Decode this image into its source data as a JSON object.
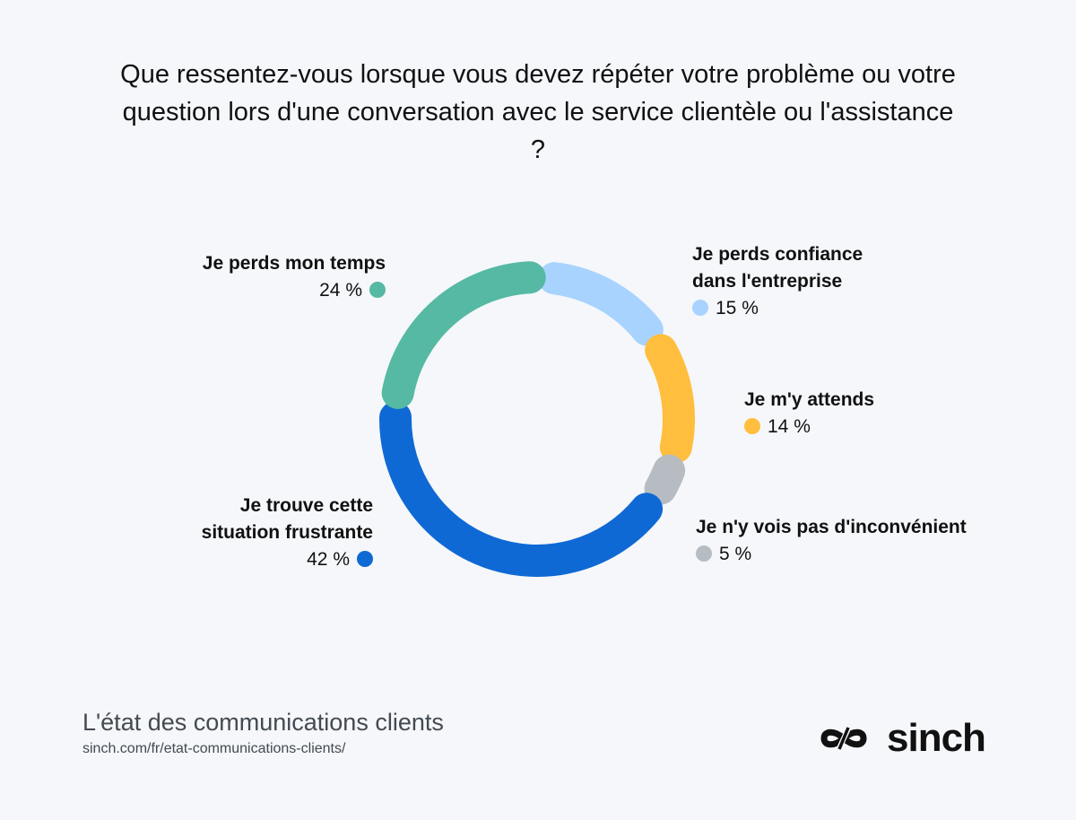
{
  "chart_data": {
    "type": "pie",
    "variant": "donut",
    "title": "Que ressentez-vous lorsque vous devez répéter votre problème ou votre question lors d'une conversation avec le service clientèle ou l'assistance ?",
    "slices": [
      {
        "label": "Je perds confiance dans l'entreprise",
        "value": 15,
        "display": "15 %",
        "color": "#a8d3ff"
      },
      {
        "label": "Je m'y attends",
        "value": 14,
        "display": "14 %",
        "color": "#ffbe3d"
      },
      {
        "label": "Je n'y vois pas d'inconvénient",
        "value": 5,
        "display": "5 %",
        "color": "#b7bcc2"
      },
      {
        "label": "Je trouve cette situation frustrante",
        "value": 42,
        "display": "42 %",
        "color": "#0f69d4"
      },
      {
        "label": "Je perds mon temps",
        "value": 24,
        "display": "24 %",
        "color": "#55b9a3"
      }
    ],
    "legend": "labels around the ring"
  },
  "footer": {
    "title": "L'état des communications clients",
    "url": "sinch.com/fr/etat-communications-clients/"
  },
  "logo": {
    "text": "sinch",
    "icon": "sinch-infinity-icon"
  }
}
